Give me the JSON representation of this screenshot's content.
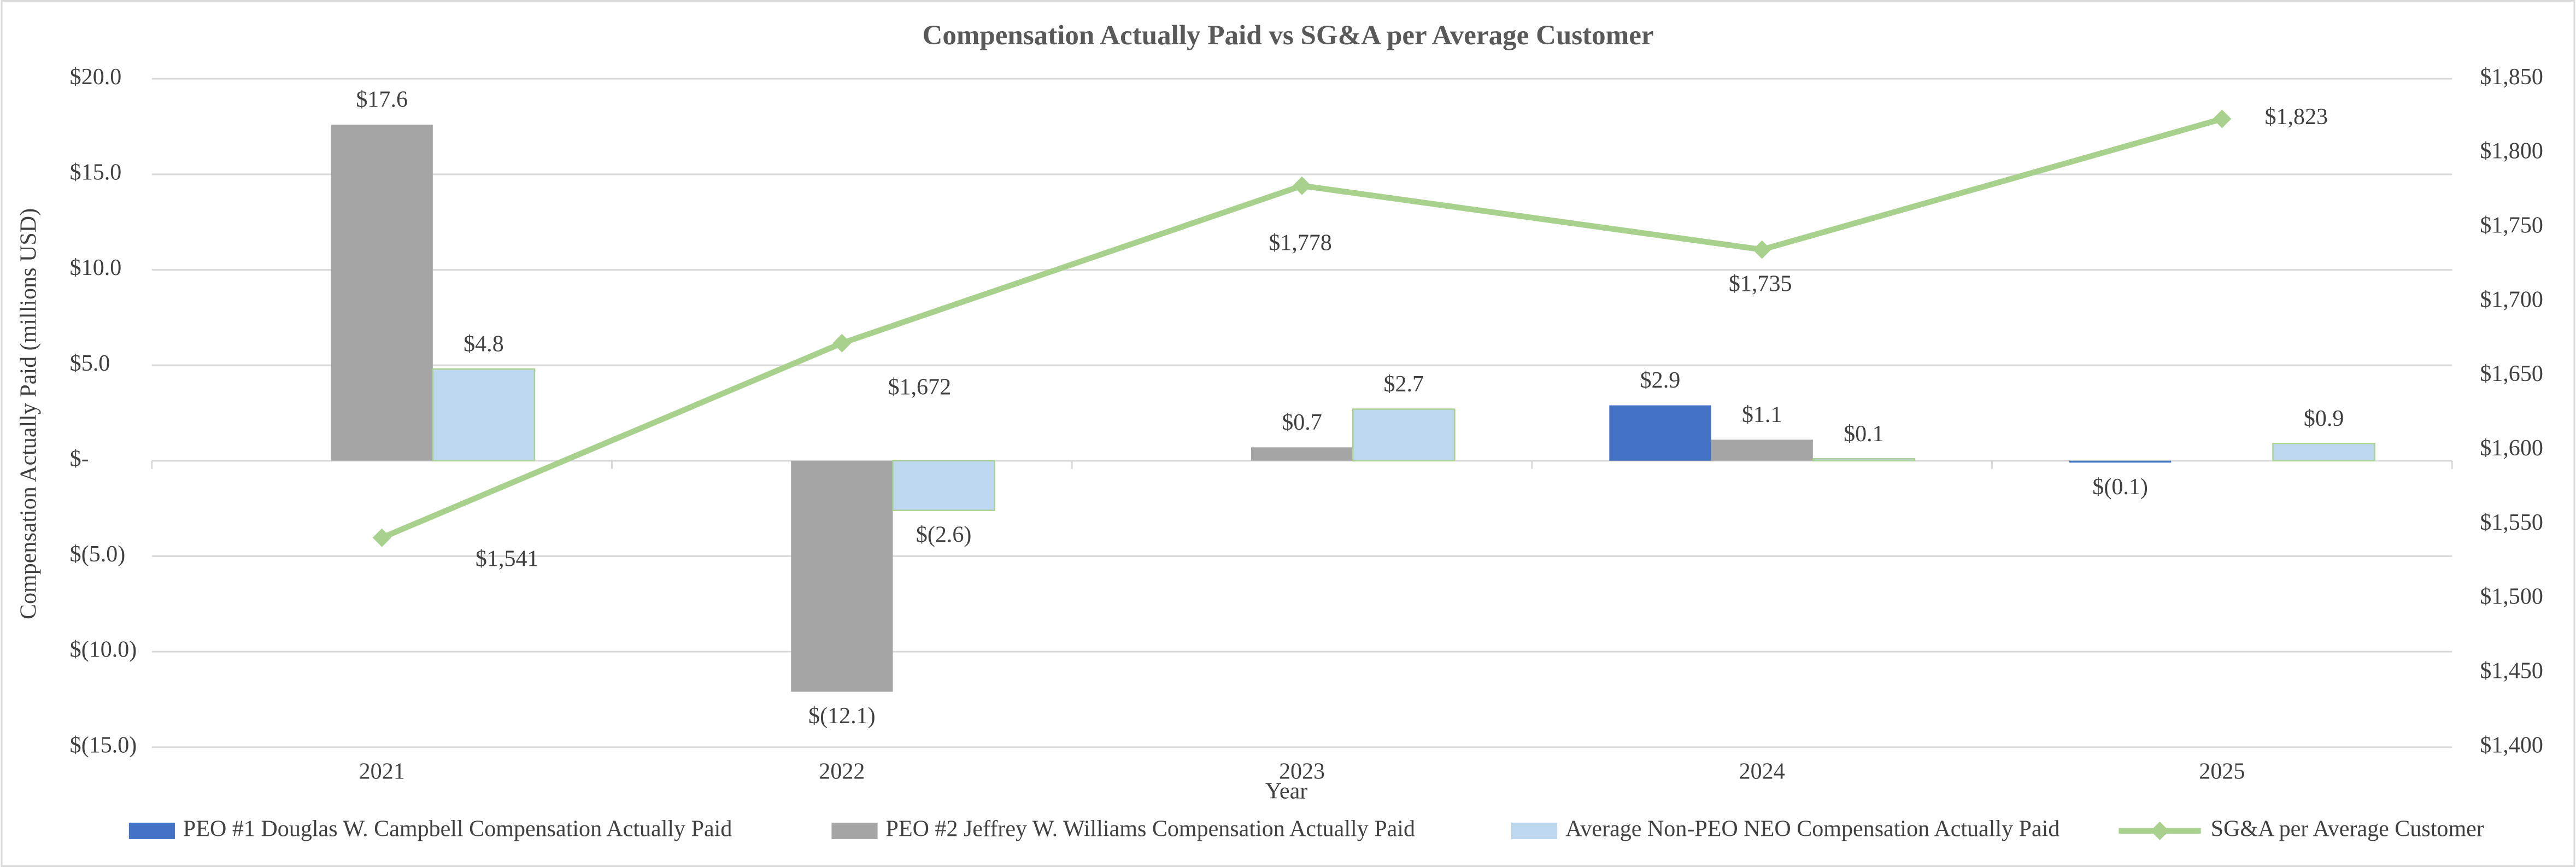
{
  "chart_data": {
    "type": "bar-line",
    "title": "Compensation Actually Paid vs SG&A per Average Customer",
    "x_label": "Year",
    "y_label": "Compensation Actually Paid (millions USD)",
    "categories": [
      "2021",
      "2022",
      "2023",
      "2024",
      "2025"
    ],
    "series": [
      {
        "name": "PEO #1 Douglas W. Campbell Compensation Actually Paid",
        "color": "#4472c4",
        "type": "bar",
        "values": [
          null,
          null,
          null,
          2.9,
          -0.1
        ],
        "value_labels": [
          null,
          null,
          null,
          "$2.9",
          "$(0.1)"
        ]
      },
      {
        "name": "PEO #2 Jeffrey W. Williams Compensation Actually Paid",
        "color": "#a5a5a5",
        "type": "bar",
        "values": [
          17.6,
          -12.1,
          0.7,
          1.1,
          null
        ],
        "value_labels": [
          "$17.6",
          "$(12.1)",
          "$0.7",
          "$1.1",
          null
        ]
      },
      {
        "name": "Average Non-PEO NEO Compensation Actually Paid",
        "color": "#bdd7ee",
        "type": "bar",
        "values": [
          4.8,
          -2.6,
          2.7,
          0.1,
          0.9
        ],
        "value_labels": [
          "$4.8",
          "$(2.6)",
          "$2.7",
          "$0.1",
          "$0.9"
        ]
      },
      {
        "name": "SG&A per Average Customer",
        "color": "#a9d18e",
        "type": "line",
        "axis": "y2",
        "values": [
          1541,
          1672,
          1778,
          1735,
          1823
        ],
        "value_labels": [
          "$1,541",
          "$1,672",
          "$1,778",
          "$1,735",
          "$1,823"
        ]
      }
    ],
    "ylim": [
      -15,
      20
    ],
    "yticks": [
      {
        "value": -15,
        "label": "$(15.0)"
      },
      {
        "value": -10,
        "label": "$(10.0)"
      },
      {
        "value": -5,
        "label": "$(5.0)"
      },
      {
        "value": 0,
        "label": "$-"
      },
      {
        "value": 5,
        "label": "$5.0"
      },
      {
        "value": 10,
        "label": "$10.0"
      },
      {
        "value": 15,
        "label": "$15.0"
      },
      {
        "value": 20,
        "label": "$20.0"
      }
    ],
    "y2lim": [
      1400,
      1850
    ],
    "y2ticks": [
      {
        "value": 1400,
        "label": "$1,400"
      },
      {
        "value": 1450,
        "label": "$1,450"
      },
      {
        "value": 1500,
        "label": "$1,500"
      },
      {
        "value": 1550,
        "label": "$1,550"
      },
      {
        "value": 1600,
        "label": "$1,600"
      },
      {
        "value": 1650,
        "label": "$1,650"
      },
      {
        "value": 1700,
        "label": "$1,700"
      },
      {
        "value": 1750,
        "label": "$1,750"
      },
      {
        "value": 1800,
        "label": "$1,800"
      },
      {
        "value": 1850,
        "label": "$1,850"
      }
    ],
    "grid": true,
    "legend": "bottom"
  }
}
